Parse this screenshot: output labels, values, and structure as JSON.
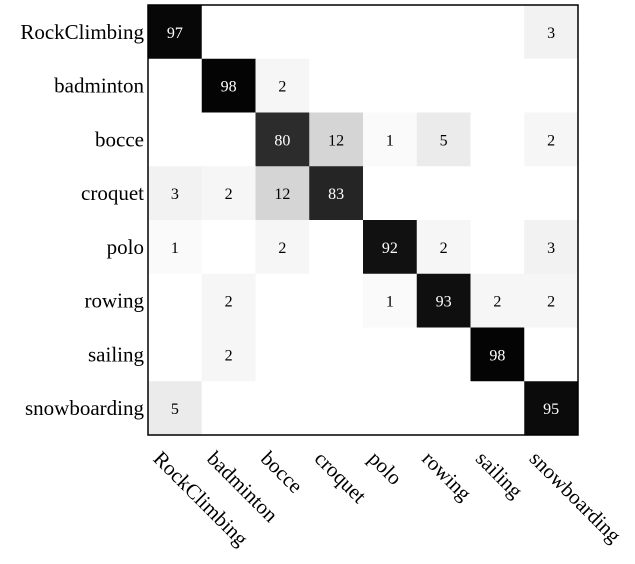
{
  "chart_data": {
    "type": "heatmap",
    "title": "",
    "xlabel": "",
    "ylabel": "",
    "rows": [
      "RockClimbing",
      "badminton",
      "bocce",
      "croquet",
      "polo",
      "rowing",
      "sailing",
      "snowboarding"
    ],
    "columns": [
      "RockClimbing",
      "badminton",
      "bocce",
      "croquet",
      "polo",
      "rowing",
      "sailing",
      "snowboarding"
    ],
    "values": [
      [
        97,
        0,
        0,
        0,
        0,
        0,
        0,
        3
      ],
      [
        0,
        98,
        2,
        0,
        0,
        0,
        0,
        0
      ],
      [
        0,
        0,
        80,
        12,
        1,
        5,
        0,
        2
      ],
      [
        3,
        2,
        12,
        83,
        0,
        0,
        0,
        0
      ],
      [
        1,
        0,
        2,
        0,
        92,
        2,
        0,
        3
      ],
      [
        0,
        2,
        0,
        0,
        1,
        93,
        2,
        2
      ],
      [
        0,
        2,
        0,
        0,
        0,
        0,
        98,
        0
      ],
      [
        5,
        0,
        0,
        0,
        0,
        0,
        0,
        95
      ]
    ],
    "value_range": [
      0,
      100
    ],
    "zero_cells_labeled": false,
    "colormap": "white-to-black",
    "low_color": "#ffffff",
    "high_color": "#000000"
  }
}
